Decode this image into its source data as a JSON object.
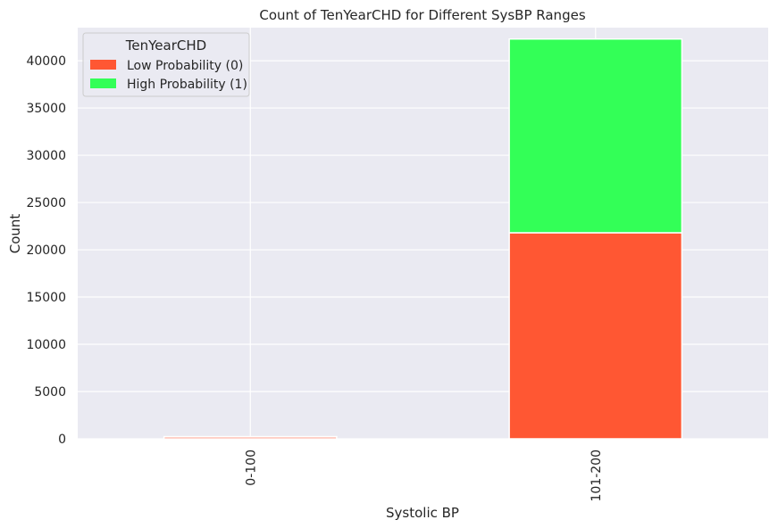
{
  "chart_data": {
    "type": "bar",
    "stacked": true,
    "title": "Count of TenYearCHD for Different SysBP Ranges",
    "xlabel": "Systolic BP",
    "ylabel": "Count",
    "categories": [
      "0-100",
      "101-200"
    ],
    "series": [
      {
        "name": "Low Probability (0)",
        "values": [
          200,
          21800
        ],
        "color": "#ff5733"
      },
      {
        "name": "High Probability (1)",
        "values": [
          30,
          20500
        ],
        "color": "#33ff57"
      }
    ],
    "ylim": [
      0,
      43500
    ],
    "yticks": [
      "0",
      "5000",
      "10000",
      "15000",
      "20000",
      "25000",
      "30000",
      "35000",
      "40000"
    ],
    "grid": true,
    "legend": {
      "title": "TenYearCHD",
      "placement": "top-left"
    },
    "background": "#eaeaf2",
    "xtick_rotation": "vertical"
  }
}
